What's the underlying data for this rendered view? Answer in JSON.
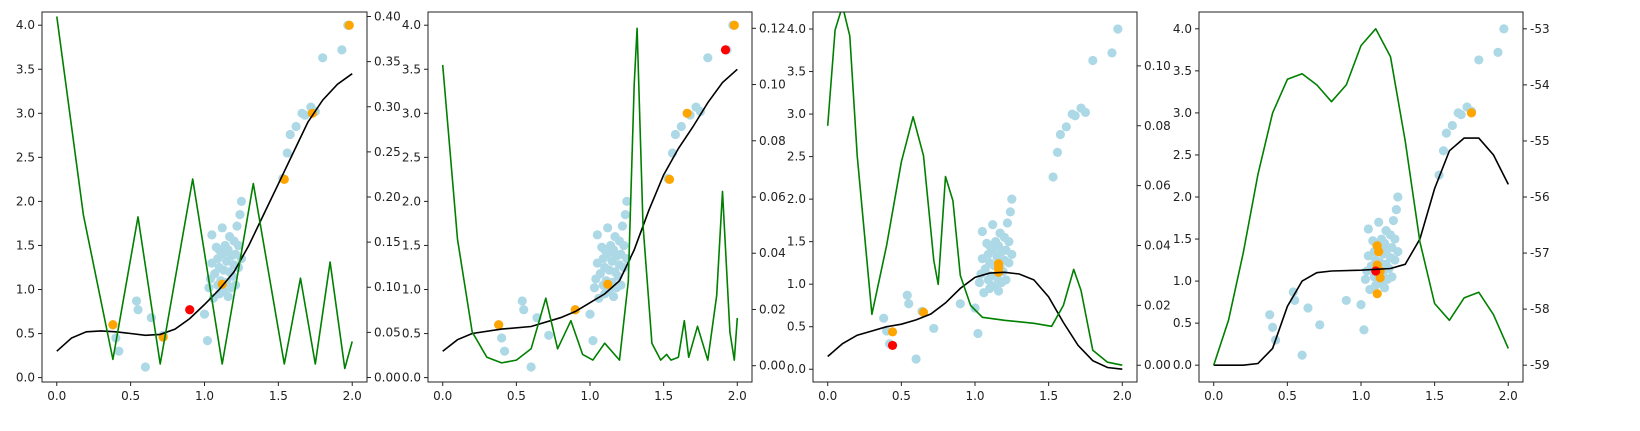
{
  "colors": {
    "scatter": "#add8e6",
    "highlight": "#ffa500",
    "current": "#ff0000",
    "mean_curve": "#000000",
    "acquisition": "#008000",
    "axes": "#222222"
  },
  "chart_data": [
    {
      "type": "scatter",
      "title": "",
      "xlabel": "",
      "ylabel": "",
      "xlim": [
        -0.1,
        2.1
      ],
      "ylim": [
        -0.05,
        4.15
      ],
      "xticks": [
        "0.0",
        "0.5",
        "1.0",
        "1.5",
        "2.0"
      ],
      "yticks": [
        "0.0",
        "0.5",
        "1.0",
        "1.5",
        "2.0",
        "2.5",
        "3.0",
        "3.5",
        "4.0"
      ],
      "y2lim": [
        -0.005,
        0.405
      ],
      "y2ticks": [
        "0.00",
        "0.05",
        "0.10",
        "0.15",
        "0.20",
        "0.25",
        "0.30",
        "0.35",
        "0.40"
      ],
      "highlighted_points": [
        [
          0.38,
          0.6
        ],
        [
          0.72,
          0.46
        ],
        [
          1.12,
          1.06
        ],
        [
          1.54,
          2.25
        ],
        [
          1.73,
          3.0
        ],
        [
          1.98,
          4.0
        ]
      ],
      "current_point": [
        0.9,
        0.77
      ],
      "mean_curve": [
        [
          0.0,
          0.3
        ],
        [
          0.1,
          0.45
        ],
        [
          0.2,
          0.52
        ],
        [
          0.3,
          0.53
        ],
        [
          0.4,
          0.52
        ],
        [
          0.5,
          0.5
        ],
        [
          0.6,
          0.48
        ],
        [
          0.7,
          0.49
        ],
        [
          0.8,
          0.55
        ],
        [
          0.9,
          0.67
        ],
        [
          1.0,
          0.83
        ],
        [
          1.1,
          1.0
        ],
        [
          1.2,
          1.2
        ],
        [
          1.3,
          1.5
        ],
        [
          1.4,
          1.85
        ],
        [
          1.5,
          2.2
        ],
        [
          1.6,
          2.55
        ],
        [
          1.7,
          2.9
        ],
        [
          1.8,
          3.15
        ],
        [
          1.9,
          3.33
        ],
        [
          2.0,
          3.45
        ]
      ],
      "acquisition_curve": [
        [
          0.0,
          0.4
        ],
        [
          0.18,
          0.18
        ],
        [
          0.38,
          0.02
        ],
        [
          0.55,
          0.178
        ],
        [
          0.7,
          0.015
        ],
        [
          0.92,
          0.22
        ],
        [
          1.12,
          0.015
        ],
        [
          1.33,
          0.215
        ],
        [
          1.54,
          0.015
        ],
        [
          1.65,
          0.11
        ],
        [
          1.75,
          0.015
        ],
        [
          1.85,
          0.128
        ],
        [
          1.95,
          0.01
        ],
        [
          2.0,
          0.04
        ]
      ]
    },
    {
      "type": "scatter",
      "title": "",
      "xlabel": "",
      "ylabel": "",
      "xlim": [
        -0.1,
        2.1
      ],
      "ylim": [
        -0.05,
        4.15
      ],
      "xticks": [
        "0.0",
        "0.5",
        "1.0",
        "1.5",
        "2.0"
      ],
      "yticks": [
        "0.0",
        "0.5",
        "1.0",
        "1.5",
        "2.0",
        "2.5",
        "3.0",
        "3.5",
        "4.0"
      ],
      "y2lim": [
        -0.0058,
        0.1258
      ],
      "y2ticks": [
        "0.00",
        "0.02",
        "0.04",
        "0.06",
        "0.08",
        "0.10",
        "0.12"
      ],
      "highlighted_points": [
        [
          0.38,
          0.6
        ],
        [
          0.9,
          0.77
        ],
        [
          1.12,
          1.06
        ],
        [
          1.54,
          2.25
        ],
        [
          1.66,
          3.0
        ],
        [
          1.98,
          4.0
        ]
      ],
      "current_point": [
        1.92,
        3.72
      ],
      "mean_curve": [
        [
          0.0,
          0.3
        ],
        [
          0.1,
          0.43
        ],
        [
          0.2,
          0.5
        ],
        [
          0.4,
          0.55
        ],
        [
          0.6,
          0.58
        ],
        [
          0.8,
          0.68
        ],
        [
          0.9,
          0.75
        ],
        [
          1.0,
          0.85
        ],
        [
          1.1,
          0.95
        ],
        [
          1.2,
          1.1
        ],
        [
          1.3,
          1.45
        ],
        [
          1.4,
          1.9
        ],
        [
          1.5,
          2.3
        ],
        [
          1.6,
          2.6
        ],
        [
          1.7,
          2.85
        ],
        [
          1.8,
          3.12
        ],
        [
          1.9,
          3.35
        ],
        [
          2.0,
          3.5
        ]
      ],
      "acquisition_curve": [
        [
          0.0,
          0.107
        ],
        [
          0.1,
          0.045
        ],
        [
          0.2,
          0.012
        ],
        [
          0.3,
          0.003
        ],
        [
          0.4,
          0.001
        ],
        [
          0.5,
          0.002
        ],
        [
          0.6,
          0.006
        ],
        [
          0.7,
          0.024
        ],
        [
          0.78,
          0.006
        ],
        [
          0.87,
          0.016
        ],
        [
          0.95,
          0.004
        ],
        [
          1.02,
          0.002
        ],
        [
          1.1,
          0.008
        ],
        [
          1.2,
          0.002
        ],
        [
          1.26,
          0.03
        ],
        [
          1.3,
          0.1
        ],
        [
          1.32,
          0.12
        ],
        [
          1.36,
          0.05
        ],
        [
          1.42,
          0.008
        ],
        [
          1.48,
          0.002
        ],
        [
          1.52,
          0.004
        ],
        [
          1.55,
          0.002
        ],
        [
          1.6,
          0.003
        ],
        [
          1.64,
          0.016
        ],
        [
          1.67,
          0.003
        ],
        [
          1.73,
          0.014
        ],
        [
          1.8,
          0.002
        ],
        [
          1.86,
          0.025
        ],
        [
          1.9,
          0.062
        ],
        [
          1.95,
          0.012
        ],
        [
          1.98,
          0.002
        ],
        [
          2.0,
          0.017
        ]
      ]
    },
    {
      "type": "scatter",
      "title": "",
      "xlabel": "",
      "ylabel": "",
      "xlim": [
        -0.1,
        2.1
      ],
      "ylim": [
        -0.15,
        4.2
      ],
      "xticks": [
        "0.0",
        "0.5",
        "1.0",
        "1.5",
        "2.0"
      ],
      "yticks": [
        "0.0",
        "0.5",
        "1.0",
        "1.5",
        "2.0",
        "2.5",
        "3.0",
        "3.5",
        "4.0"
      ],
      "y2lim": [
        -0.0056,
        0.118
      ],
      "y2ticks": [
        "0.00",
        "0.02",
        "0.04",
        "0.06",
        "0.08",
        "0.10"
      ],
      "highlighted_points": [
        [
          0.44,
          0.44
        ],
        [
          0.65,
          0.67
        ],
        [
          1.16,
          1.14
        ],
        [
          1.16,
          1.19
        ],
        [
          1.16,
          1.24
        ]
      ],
      "current_point": [
        0.44,
        0.28
      ],
      "mean_curve": [
        [
          0.0,
          0.15
        ],
        [
          0.1,
          0.3
        ],
        [
          0.2,
          0.4
        ],
        [
          0.3,
          0.45
        ],
        [
          0.4,
          0.5
        ],
        [
          0.5,
          0.53
        ],
        [
          0.6,
          0.58
        ],
        [
          0.7,
          0.65
        ],
        [
          0.8,
          0.78
        ],
        [
          0.9,
          0.95
        ],
        [
          1.0,
          1.08
        ],
        [
          1.1,
          1.13
        ],
        [
          1.2,
          1.14
        ],
        [
          1.3,
          1.12
        ],
        [
          1.4,
          1.05
        ],
        [
          1.5,
          0.85
        ],
        [
          1.6,
          0.55
        ],
        [
          1.7,
          0.28
        ],
        [
          1.8,
          0.1
        ],
        [
          1.9,
          0.02
        ],
        [
          2.0,
          0.0
        ]
      ],
      "acquisition_curve": [
        [
          0.0,
          0.08
        ],
        [
          0.05,
          0.112
        ],
        [
          0.1,
          0.12
        ],
        [
          0.15,
          0.11
        ],
        [
          0.2,
          0.07
        ],
        [
          0.3,
          0.017
        ],
        [
          0.4,
          0.04
        ],
        [
          0.5,
          0.068
        ],
        [
          0.58,
          0.083
        ],
        [
          0.65,
          0.07
        ],
        [
          0.72,
          0.035
        ],
        [
          0.75,
          0.027
        ],
        [
          0.8,
          0.063
        ],
        [
          0.85,
          0.055
        ],
        [
          0.9,
          0.03
        ],
        [
          0.97,
          0.02
        ],
        [
          1.05,
          0.016
        ],
        [
          1.2,
          0.015
        ],
        [
          1.4,
          0.014
        ],
        [
          1.52,
          0.013
        ],
        [
          1.6,
          0.02
        ],
        [
          1.67,
          0.032
        ],
        [
          1.72,
          0.025
        ],
        [
          1.8,
          0.005
        ],
        [
          1.9,
          0.001
        ],
        [
          2.0,
          0.0
        ]
      ]
    },
    {
      "type": "scatter",
      "title": "",
      "xlabel": "",
      "ylabel": "",
      "xlim": [
        -0.1,
        2.1
      ],
      "ylim": [
        -0.2,
        4.2
      ],
      "xticks": [
        "0.0",
        "0.5",
        "1.0",
        "1.5",
        "2.0"
      ],
      "yticks": [
        "0.0",
        "0.5",
        "1.0",
        "1.5",
        "2.0",
        "2.5",
        "3.0",
        "3.5",
        "4.0"
      ],
      "y2lim": [
        -59.3,
        -52.7
      ],
      "y2ticks": [
        "-59",
        "-58",
        "-57",
        "-56",
        "-55",
        "-54",
        "-53"
      ],
      "highlighted_points": [
        [
          1.11,
          1.42
        ],
        [
          1.12,
          1.35
        ],
        [
          1.11,
          1.19
        ],
        [
          1.13,
          1.04
        ],
        [
          1.11,
          0.85
        ],
        [
          1.13,
          1.12
        ],
        [
          1.75,
          3.0
        ]
      ],
      "current_point": [
        1.1,
        1.12
      ],
      "mean_curve": [
        [
          0.0,
          0.0
        ],
        [
          0.1,
          0.0
        ],
        [
          0.2,
          0.0
        ],
        [
          0.3,
          0.02
        ],
        [
          0.4,
          0.2
        ],
        [
          0.5,
          0.7
        ],
        [
          0.6,
          1.0
        ],
        [
          0.7,
          1.1
        ],
        [
          0.8,
          1.12
        ],
        [
          1.0,
          1.13
        ],
        [
          1.2,
          1.15
        ],
        [
          1.3,
          1.2
        ],
        [
          1.4,
          1.5
        ],
        [
          1.5,
          2.1
        ],
        [
          1.6,
          2.55
        ],
        [
          1.7,
          2.7
        ],
        [
          1.8,
          2.7
        ],
        [
          1.9,
          2.5
        ],
        [
          2.0,
          2.15
        ]
      ],
      "acquisition_curve": [
        [
          0.0,
          -59.0
        ],
        [
          0.1,
          -58.2
        ],
        [
          0.2,
          -57.0
        ],
        [
          0.3,
          -55.6
        ],
        [
          0.4,
          -54.5
        ],
        [
          0.5,
          -53.9
        ],
        [
          0.6,
          -53.8
        ],
        [
          0.7,
          -54.0
        ],
        [
          0.8,
          -54.3
        ],
        [
          0.9,
          -54.0
        ],
        [
          1.0,
          -53.3
        ],
        [
          1.1,
          -53.0
        ],
        [
          1.2,
          -53.5
        ],
        [
          1.3,
          -55.0
        ],
        [
          1.4,
          -56.8
        ],
        [
          1.5,
          -57.9
        ],
        [
          1.6,
          -58.2
        ],
        [
          1.7,
          -57.8
        ],
        [
          1.8,
          -57.7
        ],
        [
          1.9,
          -58.1
        ],
        [
          2.0,
          -58.7
        ]
      ]
    }
  ],
  "observations": [
    [
      0.4,
      0.45
    ],
    [
      0.42,
      0.3
    ],
    [
      0.38,
      0.6
    ],
    [
      0.54,
      0.87
    ],
    [
      0.55,
      0.77
    ],
    [
      0.6,
      0.12
    ],
    [
      0.64,
      0.68
    ],
    [
      0.72,
      0.48
    ],
    [
      0.9,
      0.77
    ],
    [
      1.0,
      0.72
    ],
    [
      1.02,
      0.42
    ],
    [
      1.03,
      1.02
    ],
    [
      1.04,
      1.12
    ],
    [
      1.05,
      1.3
    ],
    [
      1.05,
      1.62
    ],
    [
      1.06,
      0.9
    ],
    [
      1.07,
      1.18
    ],
    [
      1.08,
      1.48
    ],
    [
      1.09,
      1.05
    ],
    [
      1.09,
      1.35
    ],
    [
      1.1,
      0.95
    ],
    [
      1.1,
      1.25
    ],
    [
      1.1,
      1.45
    ],
    [
      1.11,
      1.1
    ],
    [
      1.12,
      1.7
    ],
    [
      1.12,
      1.4
    ],
    [
      1.13,
      0.98
    ],
    [
      1.13,
      1.22
    ],
    [
      1.14,
      1.5
    ],
    [
      1.15,
      1.08
    ],
    [
      1.15,
      1.32
    ],
    [
      1.16,
      0.92
    ],
    [
      1.16,
      1.45
    ],
    [
      1.17,
      1.2
    ],
    [
      1.17,
      1.6
    ],
    [
      1.18,
      1.02
    ],
    [
      1.18,
      1.38
    ],
    [
      1.19,
      1.15
    ],
    [
      1.2,
      1.28
    ],
    [
      1.2,
      1.55
    ],
    [
      1.21,
      1.05
    ],
    [
      1.21,
      1.4
    ],
    [
      1.22,
      1.72
    ],
    [
      1.23,
      1.25
    ],
    [
      1.23,
      1.5
    ],
    [
      1.24,
      1.85
    ],
    [
      1.25,
      1.35
    ],
    [
      1.25,
      2.0
    ],
    [
      1.53,
      2.26
    ],
    [
      1.56,
      2.55
    ],
    [
      1.58,
      2.76
    ],
    [
      1.62,
      2.85
    ],
    [
      1.66,
      3.0
    ],
    [
      1.68,
      2.98
    ],
    [
      1.72,
      3.07
    ],
    [
      1.75,
      3.02
    ],
    [
      1.8,
      3.63
    ],
    [
      1.93,
      3.72
    ],
    [
      1.97,
      4.0
    ]
  ]
}
